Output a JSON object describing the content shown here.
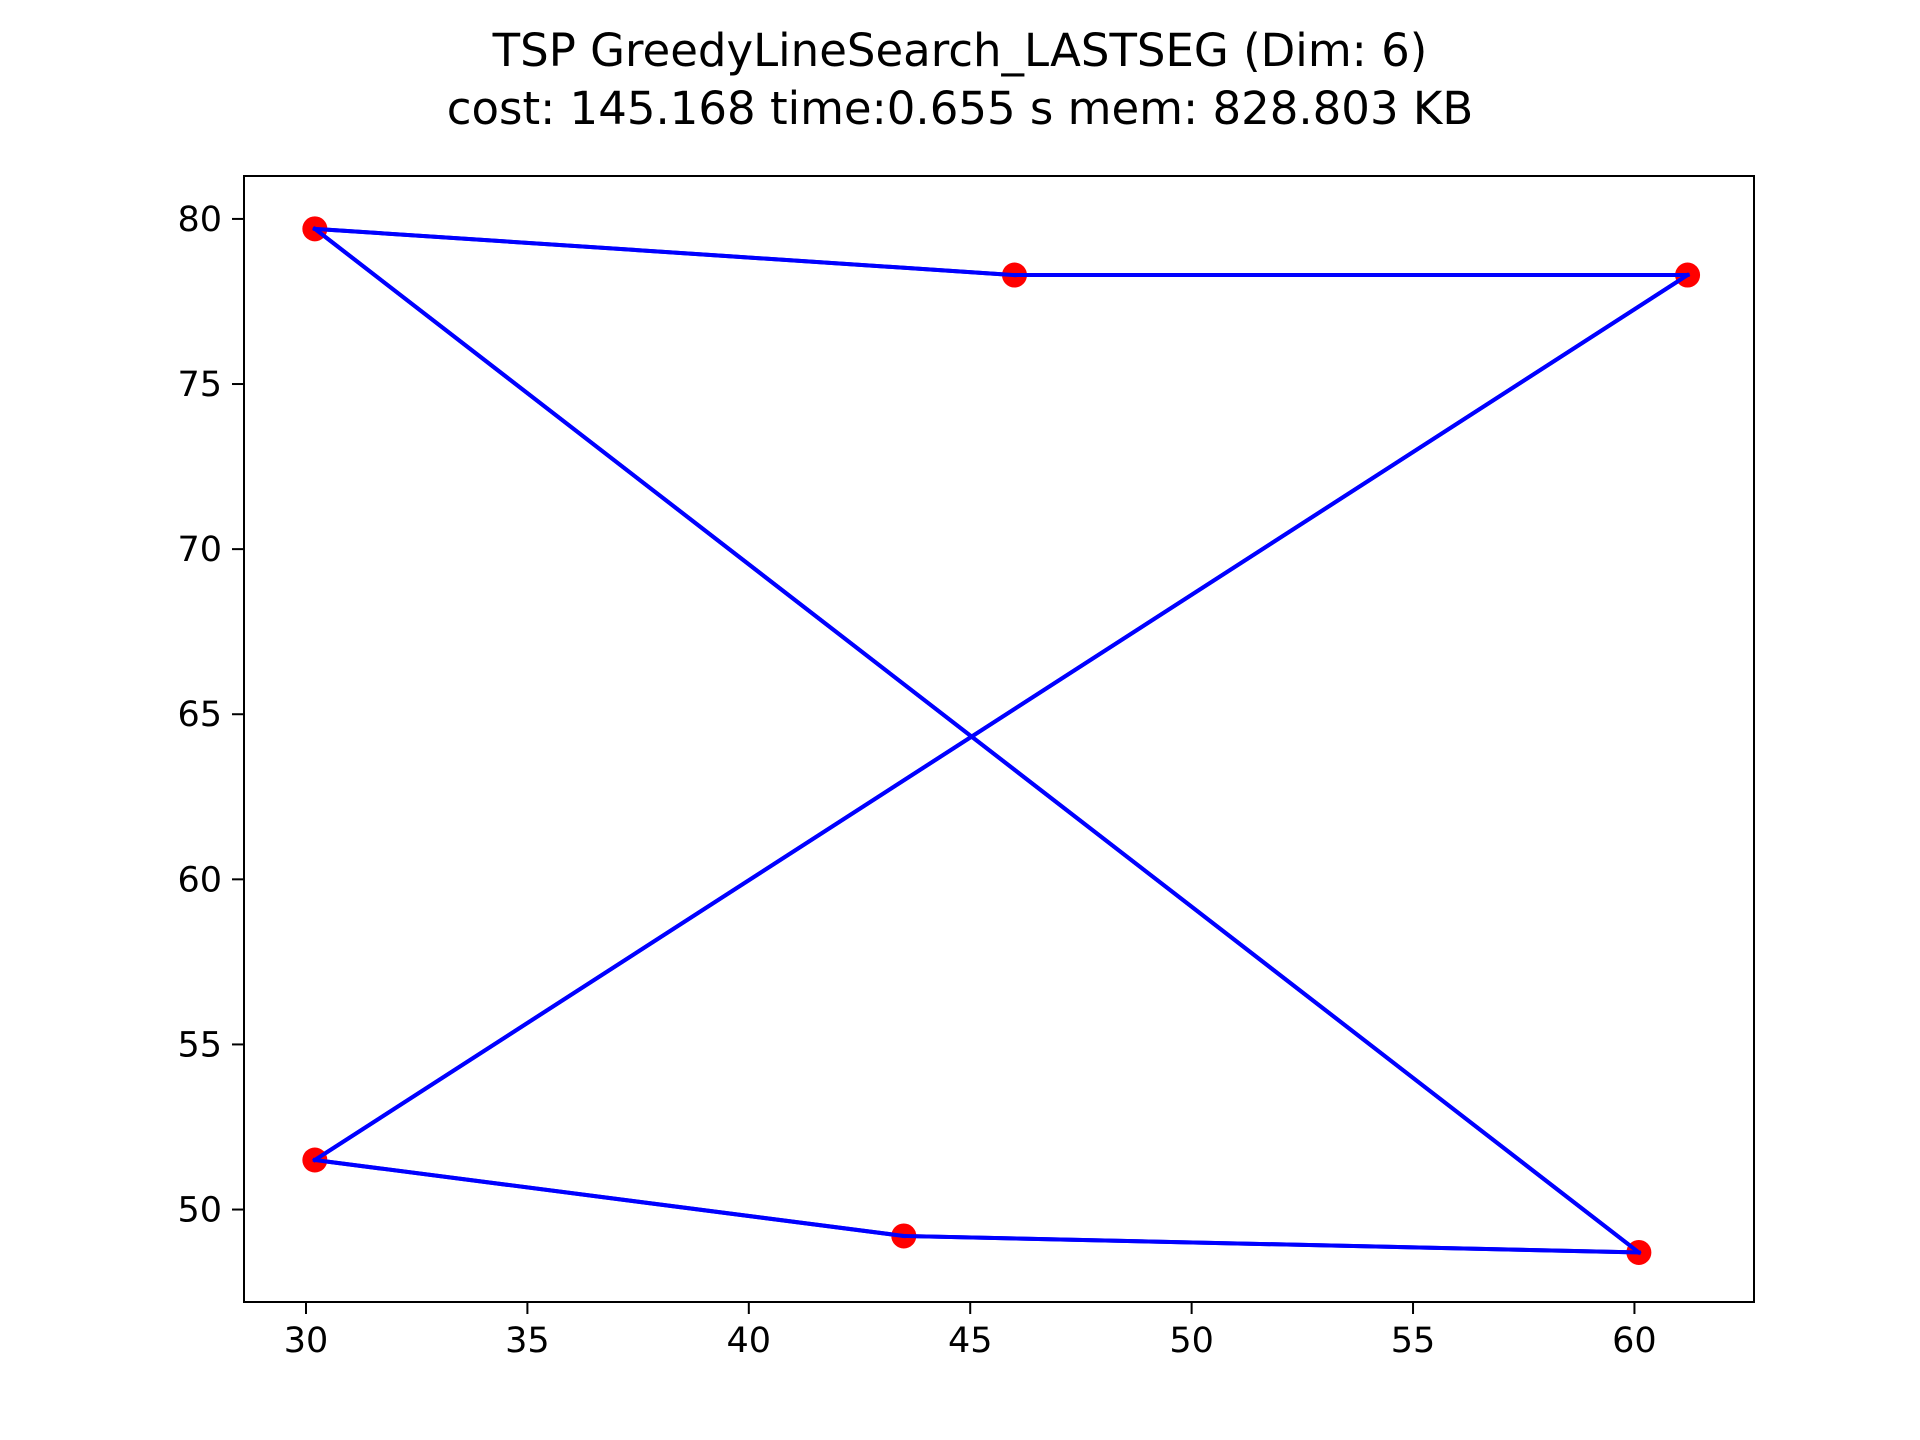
{
  "chart_data": {
    "type": "line",
    "title": "TSP GreedyLineSearch_LASTSEG (Dim: 6)",
    "subtitle": "cost: 145.168   time:0.655 s   mem: 828.803 KB",
    "xlabel": "",
    "ylabel": "",
    "xlim": [
      28.6,
      62.7
    ],
    "ylim": [
      47.2,
      81.3
    ],
    "xticks": [
      30,
      35,
      40,
      45,
      50,
      55,
      60
    ],
    "yticks": [
      50,
      55,
      60,
      65,
      70,
      75,
      80
    ],
    "grid": false,
    "legend": "none",
    "nodes": [
      {
        "x": 30.2,
        "y": 79.7
      },
      {
        "x": 46.0,
        "y": 78.3
      },
      {
        "x": 61.2,
        "y": 78.3
      },
      {
        "x": 30.2,
        "y": 51.5
      },
      {
        "x": 43.5,
        "y": 49.2
      },
      {
        "x": 60.1,
        "y": 48.7
      }
    ],
    "tour": [
      {
        "x": 30.2,
        "y": 79.7
      },
      {
        "x": 46.0,
        "y": 78.3
      },
      {
        "x": 61.2,
        "y": 78.3
      },
      {
        "x": 30.2,
        "y": 51.5
      },
      {
        "x": 43.5,
        "y": 49.2
      },
      {
        "x": 60.1,
        "y": 48.7
      },
      {
        "x": 30.2,
        "y": 79.7
      }
    ],
    "colors": {
      "path": "#0000ff",
      "nodes": "#ff0000",
      "axes": "#000000"
    }
  }
}
